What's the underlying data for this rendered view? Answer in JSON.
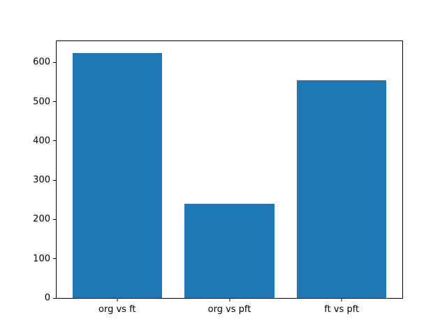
{
  "chart_data": {
    "type": "bar",
    "categories": [
      "org vs ft",
      "org vs pft",
      "ft vs pft"
    ],
    "values": [
      623,
      240,
      554
    ],
    "title": "",
    "xlabel": "",
    "ylabel": "",
    "ylim": [
      0,
      654
    ],
    "yticks": [
      0,
      100,
      200,
      300,
      400,
      500,
      600
    ],
    "bar_color": "#1f77b4",
    "grid": false,
    "legend": false
  },
  "colors": {
    "bar": "#1f77b4",
    "background": "#ffffff",
    "spine": "#000000"
  }
}
